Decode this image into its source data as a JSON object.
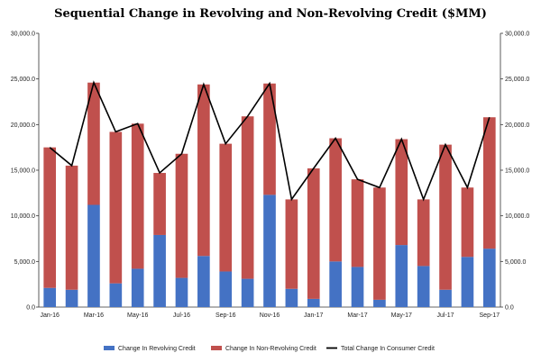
{
  "chart_data": {
    "type": "bar",
    "title": "Sequential Change in Revolving and Non-Revolving Credit ($MM)",
    "xlabel": "",
    "ylabel": "",
    "ylim": [
      0,
      30000
    ],
    "y_ticks": [
      "0.0",
      "5,000.0",
      "10,000.0",
      "15,000.0",
      "20,000.0",
      "25,000.0",
      "30,000.0"
    ],
    "y_ticks_right": [
      "0.0",
      "5,000.0",
      "10,000.0",
      "15,000.0",
      "20,000.0",
      "25,000.0",
      "30,000.0"
    ],
    "x_tick_labels": [
      "Jan-16",
      "Mar-16",
      "May-16",
      "Jul-16",
      "Sep-16",
      "Nov-16",
      "Jan-17",
      "Mar-17",
      "May-17",
      "Jul-17",
      "Sep-17"
    ],
    "categories": [
      "Jan-16",
      "Feb-16",
      "Mar-16",
      "Apr-16",
      "May-16",
      "Jun-16",
      "Jul-16",
      "Aug-16",
      "Sep-16",
      "Oct-16",
      "Nov-16",
      "Dec-16",
      "Jan-17",
      "Feb-17",
      "Mar-17",
      "Apr-17",
      "May-17",
      "Jun-17",
      "Jul-17",
      "Aug-17",
      "Sep-17"
    ],
    "stacked": true,
    "grid": false,
    "legend_position": "bottom",
    "series": [
      {
        "name": "Change In Revolving Credit",
        "type": "bar",
        "color": "#4472c4",
        "values": [
          2100,
          1900,
          11200,
          2600,
          4200,
          7900,
          3200,
          5600,
          3900,
          3100,
          12300,
          2000,
          900,
          5000,
          4400,
          800,
          6800,
          4500,
          1900,
          5500,
          6400
        ]
      },
      {
        "name": "Change In Non-Revolving Credit",
        "type": "bar",
        "color": "#c0504d",
        "values": [
          15400,
          13600,
          13400,
          16600,
          15900,
          6800,
          13600,
          18800,
          14000,
          17800,
          12200,
          9800,
          14300,
          13500,
          9600,
          12300,
          11600,
          7300,
          15900,
          7600,
          14400
        ]
      },
      {
        "name": "Total Change In Consumer Credit",
        "type": "line",
        "color": "#000000",
        "values": [
          17500,
          15500,
          24600,
          19200,
          20100,
          14700,
          16800,
          24400,
          17900,
          20900,
          24500,
          11800,
          15200,
          18500,
          14000,
          13100,
          18400,
          11800,
          17800,
          13100,
          20800
        ]
      }
    ]
  }
}
